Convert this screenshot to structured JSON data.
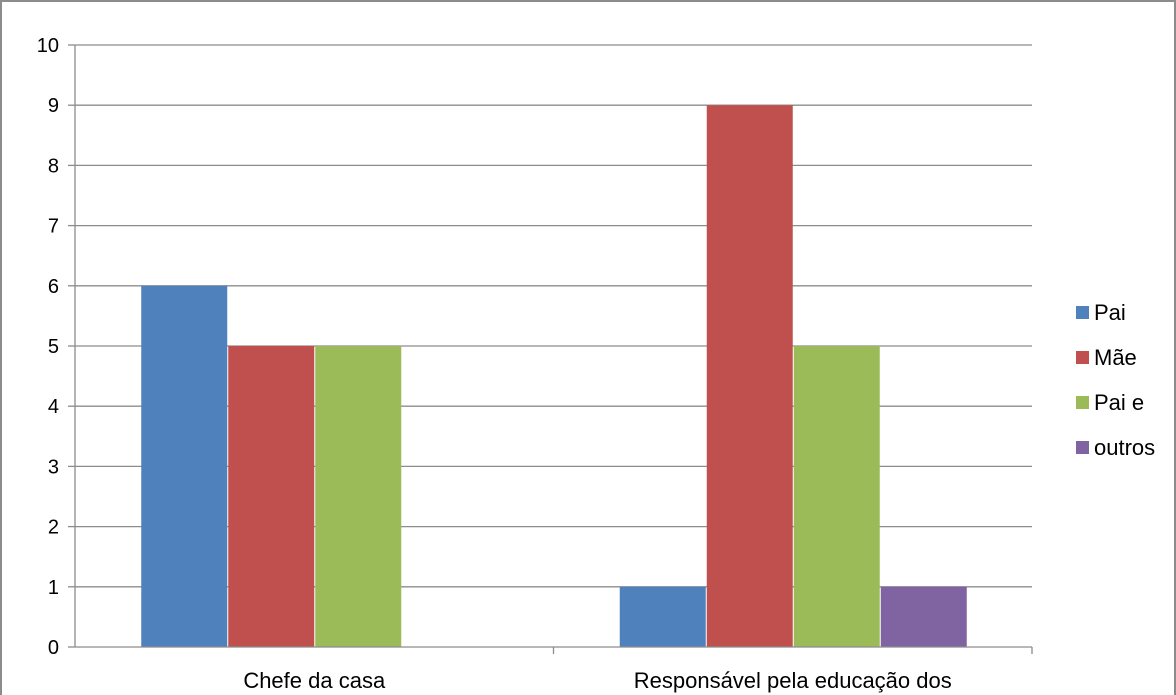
{
  "chart_data": {
    "type": "bar",
    "categories": [
      "Chefe da casa",
      "Responsável pela educação dos"
    ],
    "series": [
      {
        "name": "Pai",
        "color": "#4F81BD",
        "values": [
          6,
          1
        ]
      },
      {
        "name": "Mãe",
        "color": "#C0504D",
        "values": [
          5,
          9
        ]
      },
      {
        "name": "Pai e",
        "color": "#9BBB59",
        "values": [
          5,
          5
        ]
      },
      {
        "name": "outros",
        "color": "#8064A2",
        "values": [
          0,
          1
        ]
      }
    ],
    "yticks": [
      "0",
      "1",
      "2",
      "3",
      "4",
      "5",
      "6",
      "7",
      "8",
      "9",
      "10"
    ],
    "ylim": [
      0,
      10
    ],
    "grid": true,
    "legend_position": "right"
  }
}
